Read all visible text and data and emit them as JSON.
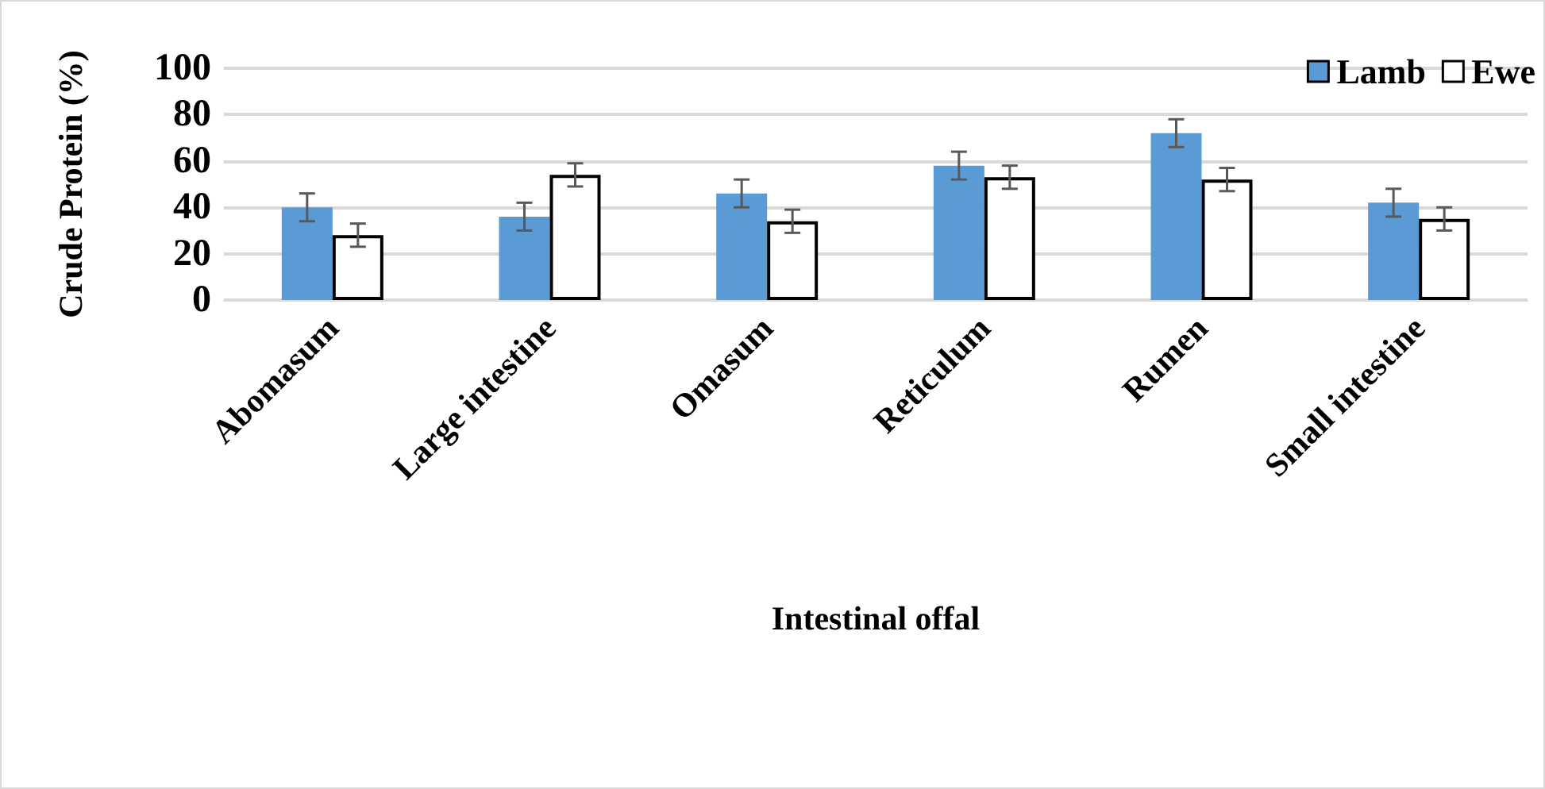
{
  "chart_data": {
    "type": "bar",
    "xlabel": "Intestinal offal",
    "ylabel": "Crude Protein (%)",
    "categories": [
      "Abomasum",
      "Large intestine",
      "Omasum",
      "Reticulum",
      "Rumen",
      "Small intestine"
    ],
    "series": [
      {
        "name": "Lamb",
        "color": "#5b9bd5",
        "values": [
          40,
          36,
          46,
          58,
          72,
          42
        ],
        "errors": [
          6,
          6,
          6,
          6,
          6,
          6
        ]
      },
      {
        "name": "Ewe",
        "color": "#ffffff",
        "values": [
          28,
          54,
          34,
          53,
          52,
          35
        ],
        "errors": [
          5,
          5,
          5,
          5,
          5,
          5
        ]
      }
    ],
    "ylim": [
      0,
      100
    ],
    "yticks": [
      0,
      20,
      40,
      60,
      80,
      100
    ],
    "grid": "y",
    "legend": "top right"
  }
}
